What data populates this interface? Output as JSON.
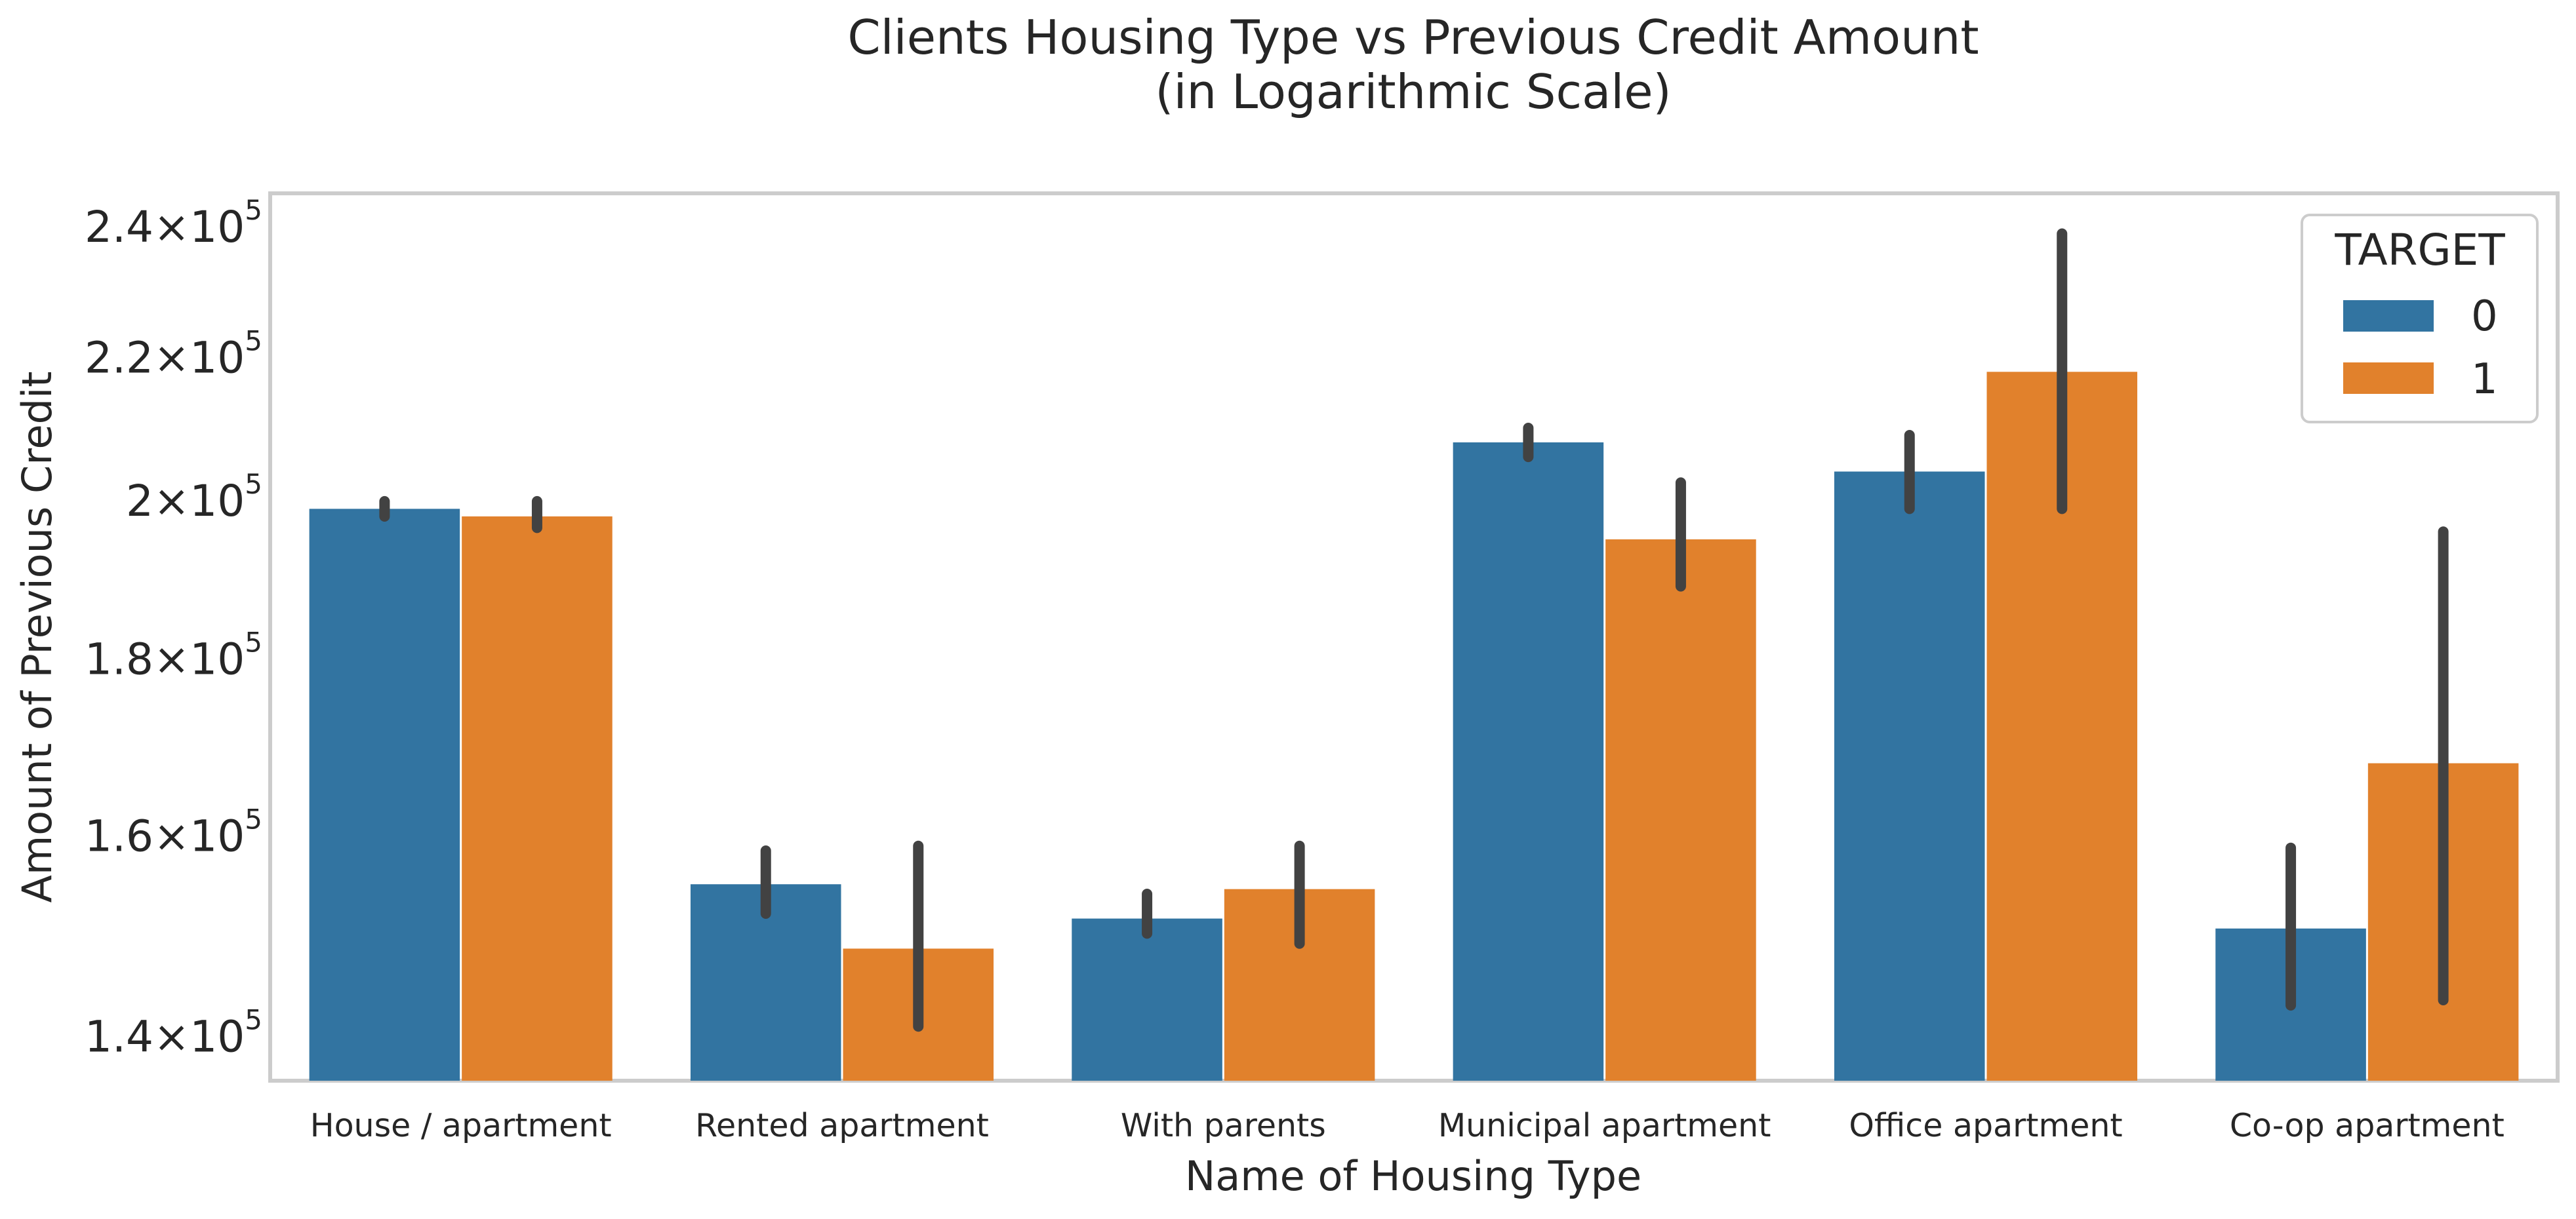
{
  "chart_data": {
    "type": "bar",
    "title": "Clients Housing Type vs Previous Credit Amount",
    "subtitle": "(in Logarithmic Scale)",
    "xlabel": "Name of Housing Type",
    "ylabel": "Amount of Previous Credit",
    "yscale": "log",
    "ylim": [
      136000,
      245500
    ],
    "yticks": [
      {
        "value": 140000,
        "mantissa": "1.4",
        "exponent": "5"
      },
      {
        "value": 160000,
        "mantissa": "1.6",
        "exponent": "5"
      },
      {
        "value": 180000,
        "mantissa": "1.8",
        "exponent": "5"
      },
      {
        "value": 200000,
        "mantissa": "2",
        "exponent": "5"
      },
      {
        "value": 220000,
        "mantissa": "2.2",
        "exponent": "5"
      },
      {
        "value": 240000,
        "mantissa": "2.4",
        "exponent": "5"
      }
    ],
    "grid": false,
    "legend": {
      "title": "TARGET",
      "position": "top-right"
    },
    "categories": [
      "House / apartment",
      "Rented apartment",
      "With parents",
      "Municipal apartment",
      "Office apartment",
      "Co-op apartment"
    ],
    "series": [
      {
        "name": "0",
        "color": "#3274a1",
        "values": [
          199000,
          155000,
          151500,
          208000,
          204000,
          150500
        ],
        "ci": [
          [
            198000,
            200000
          ],
          [
            152000,
            158500
          ],
          [
            150000,
            154000
          ],
          [
            206000,
            210000
          ],
          [
            199000,
            209000
          ],
          [
            143000,
            158800
          ]
        ]
      },
      {
        "name": "1",
        "color": "#e1812c",
        "values": [
          198000,
          148500,
          154500,
          195000,
          218000,
          168000
        ],
        "ci": [
          [
            196500,
            200000
          ],
          [
            141000,
            159000
          ],
          [
            149000,
            159000
          ],
          [
            189000,
            202500
          ],
          [
            199000,
            239000
          ],
          [
            143500,
            196000
          ]
        ]
      }
    ]
  }
}
